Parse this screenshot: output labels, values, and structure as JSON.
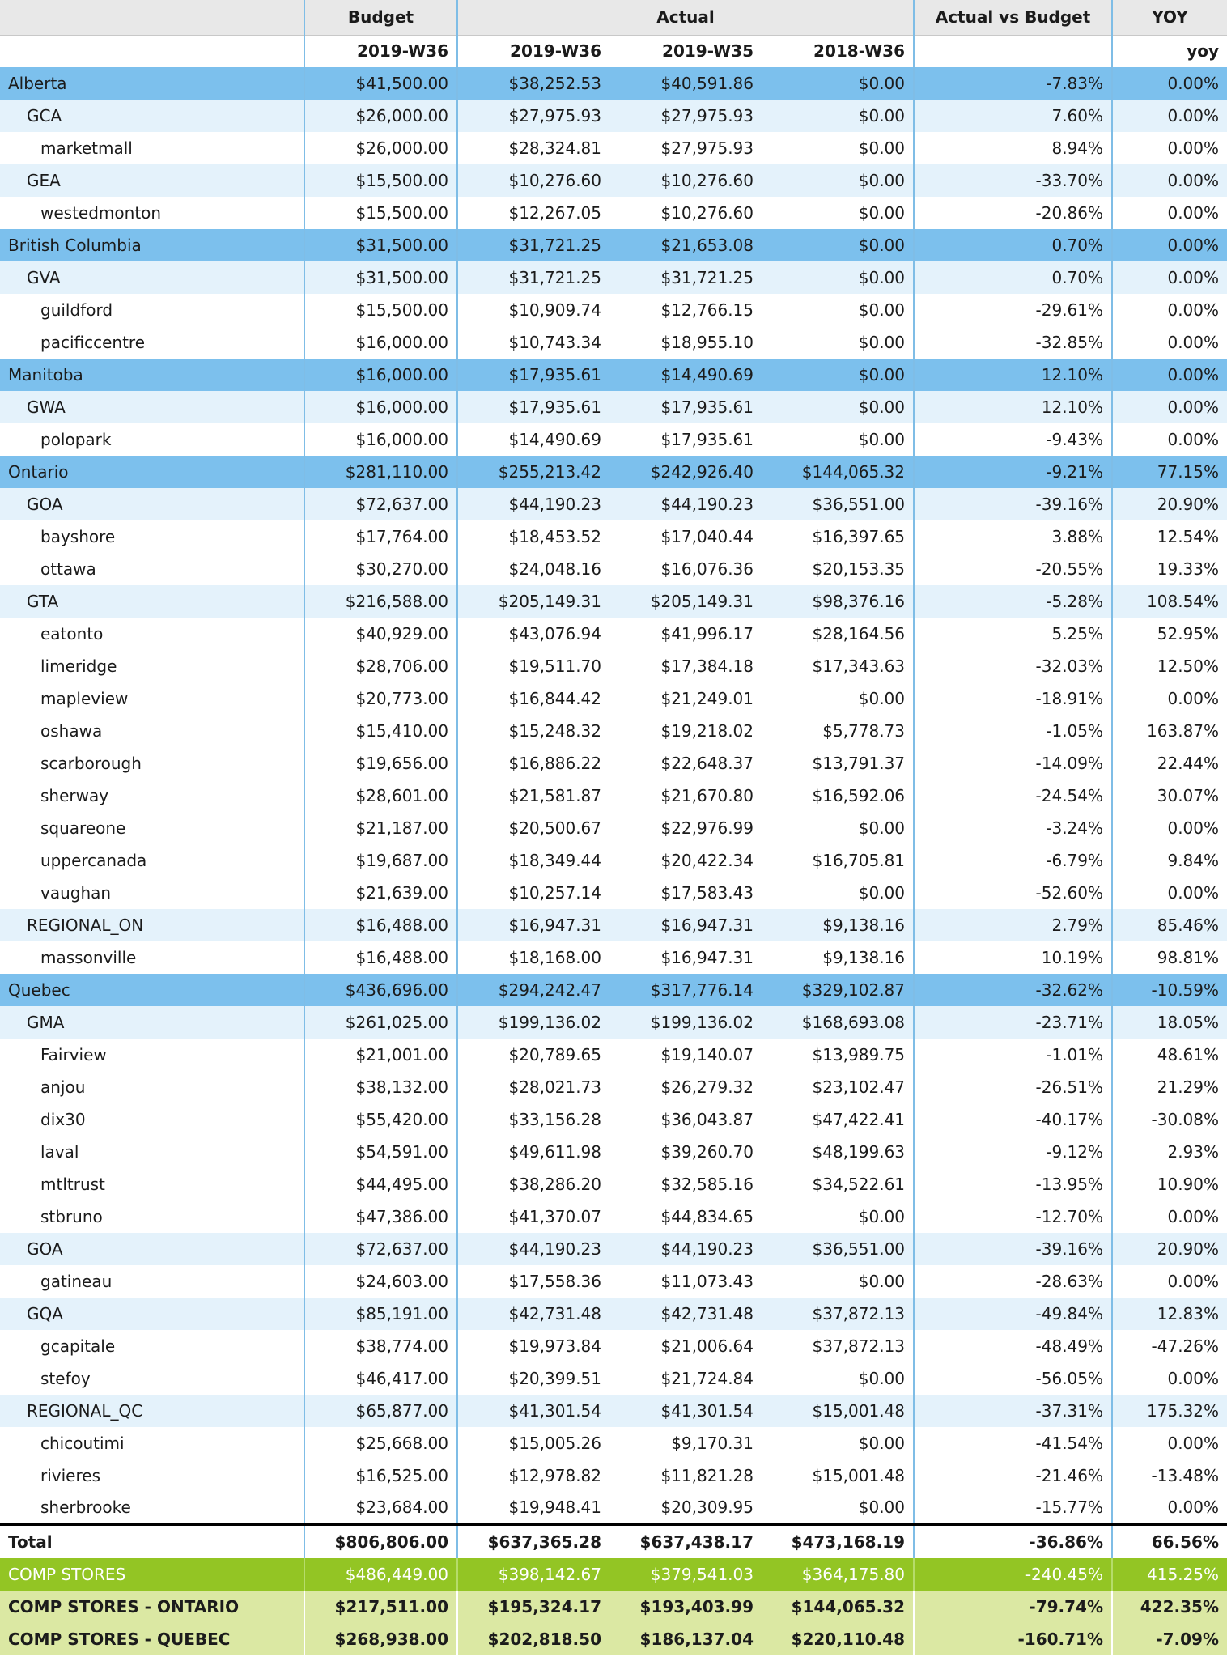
{
  "header": {
    "group_budget": "Budget",
    "group_actual": "Actual",
    "group_avb": "Actual vs Budget",
    "group_yoy": "YOY",
    "budget_week": "2019-W36",
    "actual_w36": "2019-W36",
    "actual_w35": "2019-W35",
    "actual_2018_w36": "2018-W36",
    "avb_sub": "",
    "yoy_sub": "yoy"
  },
  "rows": [
    {
      "level": 0,
      "name": "Alberta",
      "budget": "$41,500.00",
      "a36": "$38,252.53",
      "a35": "$40,591.86",
      "a18": "$0.00",
      "avb": "-7.83%",
      "yoy": "0.00%"
    },
    {
      "level": 1,
      "name": "GCA",
      "budget": "$26,000.00",
      "a36": "$27,975.93",
      "a35": "$27,975.93",
      "a18": "$0.00",
      "avb": "7.60%",
      "yoy": "0.00%"
    },
    {
      "level": 2,
      "name": "marketmall",
      "budget": "$26,000.00",
      "a36": "$28,324.81",
      "a35": "$27,975.93",
      "a18": "$0.00",
      "avb": "8.94%",
      "yoy": "0.00%"
    },
    {
      "level": 1,
      "name": "GEA",
      "budget": "$15,500.00",
      "a36": "$10,276.60",
      "a35": "$10,276.60",
      "a18": "$0.00",
      "avb": "-33.70%",
      "yoy": "0.00%"
    },
    {
      "level": 2,
      "name": "westedmonton",
      "budget": "$15,500.00",
      "a36": "$12,267.05",
      "a35": "$10,276.60",
      "a18": "$0.00",
      "avb": "-20.86%",
      "yoy": "0.00%"
    },
    {
      "level": 0,
      "name": "British Columbia",
      "budget": "$31,500.00",
      "a36": "$31,721.25",
      "a35": "$21,653.08",
      "a18": "$0.00",
      "avb": "0.70%",
      "yoy": "0.00%"
    },
    {
      "level": 1,
      "name": "GVA",
      "budget": "$31,500.00",
      "a36": "$31,721.25",
      "a35": "$31,721.25",
      "a18": "$0.00",
      "avb": "0.70%",
      "yoy": "0.00%"
    },
    {
      "level": 2,
      "name": "guildford",
      "budget": "$15,500.00",
      "a36": "$10,909.74",
      "a35": "$12,766.15",
      "a18": "$0.00",
      "avb": "-29.61%",
      "yoy": "0.00%"
    },
    {
      "level": 2,
      "name": "pacificcentre",
      "budget": "$16,000.00",
      "a36": "$10,743.34",
      "a35": "$18,955.10",
      "a18": "$0.00",
      "avb": "-32.85%",
      "yoy": "0.00%"
    },
    {
      "level": 0,
      "name": "Manitoba",
      "budget": "$16,000.00",
      "a36": "$17,935.61",
      "a35": "$14,490.69",
      "a18": "$0.00",
      "avb": "12.10%",
      "yoy": "0.00%"
    },
    {
      "level": 1,
      "name": "GWA",
      "budget": "$16,000.00",
      "a36": "$17,935.61",
      "a35": "$17,935.61",
      "a18": "$0.00",
      "avb": "12.10%",
      "yoy": "0.00%"
    },
    {
      "level": 2,
      "name": "polopark",
      "budget": "$16,000.00",
      "a36": "$14,490.69",
      "a35": "$17,935.61",
      "a18": "$0.00",
      "avb": "-9.43%",
      "yoy": "0.00%"
    },
    {
      "level": 0,
      "name": "Ontario",
      "budget": "$281,110.00",
      "a36": "$255,213.42",
      "a35": "$242,926.40",
      "a18": "$144,065.32",
      "avb": "-9.21%",
      "yoy": "77.15%"
    },
    {
      "level": 1,
      "name": "GOA",
      "budget": "$72,637.00",
      "a36": "$44,190.23",
      "a35": "$44,190.23",
      "a18": "$36,551.00",
      "avb": "-39.16%",
      "yoy": "20.90%"
    },
    {
      "level": 2,
      "name": "bayshore",
      "budget": "$17,764.00",
      "a36": "$18,453.52",
      "a35": "$17,040.44",
      "a18": "$16,397.65",
      "avb": "3.88%",
      "yoy": "12.54%"
    },
    {
      "level": 2,
      "name": "ottawa",
      "budget": "$30,270.00",
      "a36": "$24,048.16",
      "a35": "$16,076.36",
      "a18": "$20,153.35",
      "avb": "-20.55%",
      "yoy": "19.33%"
    },
    {
      "level": 1,
      "name": "GTA",
      "budget": "$216,588.00",
      "a36": "$205,149.31",
      "a35": "$205,149.31",
      "a18": "$98,376.16",
      "avb": "-5.28%",
      "yoy": "108.54%"
    },
    {
      "level": 2,
      "name": "eatonto",
      "budget": "$40,929.00",
      "a36": "$43,076.94",
      "a35": "$41,996.17",
      "a18": "$28,164.56",
      "avb": "5.25%",
      "yoy": "52.95%"
    },
    {
      "level": 2,
      "name": "limeridge",
      "budget": "$28,706.00",
      "a36": "$19,511.70",
      "a35": "$17,384.18",
      "a18": "$17,343.63",
      "avb": "-32.03%",
      "yoy": "12.50%"
    },
    {
      "level": 2,
      "name": "mapleview",
      "budget": "$20,773.00",
      "a36": "$16,844.42",
      "a35": "$21,249.01",
      "a18": "$0.00",
      "avb": "-18.91%",
      "yoy": "0.00%"
    },
    {
      "level": 2,
      "name": "oshawa",
      "budget": "$15,410.00",
      "a36": "$15,248.32",
      "a35": "$19,218.02",
      "a18": "$5,778.73",
      "avb": "-1.05%",
      "yoy": "163.87%"
    },
    {
      "level": 2,
      "name": "scarborough",
      "budget": "$19,656.00",
      "a36": "$16,886.22",
      "a35": "$22,648.37",
      "a18": "$13,791.37",
      "avb": "-14.09%",
      "yoy": "22.44%"
    },
    {
      "level": 2,
      "name": "sherway",
      "budget": "$28,601.00",
      "a36": "$21,581.87",
      "a35": "$21,670.80",
      "a18": "$16,592.06",
      "avb": "-24.54%",
      "yoy": "30.07%"
    },
    {
      "level": 2,
      "name": "squareone",
      "budget": "$21,187.00",
      "a36": "$20,500.67",
      "a35": "$22,976.99",
      "a18": "$0.00",
      "avb": "-3.24%",
      "yoy": "0.00%"
    },
    {
      "level": 2,
      "name": "uppercanada",
      "budget": "$19,687.00",
      "a36": "$18,349.44",
      "a35": "$20,422.34",
      "a18": "$16,705.81",
      "avb": "-6.79%",
      "yoy": "9.84%"
    },
    {
      "level": 2,
      "name": "vaughan",
      "budget": "$21,639.00",
      "a36": "$10,257.14",
      "a35": "$17,583.43",
      "a18": "$0.00",
      "avb": "-52.60%",
      "yoy": "0.00%"
    },
    {
      "level": 1,
      "name": "REGIONAL_ON",
      "budget": "$16,488.00",
      "a36": "$16,947.31",
      "a35": "$16,947.31",
      "a18": "$9,138.16",
      "avb": "2.79%",
      "yoy": "85.46%"
    },
    {
      "level": 2,
      "name": "massonville",
      "budget": "$16,488.00",
      "a36": "$18,168.00",
      "a35": "$16,947.31",
      "a18": "$9,138.16",
      "avb": "10.19%",
      "yoy": "98.81%"
    },
    {
      "level": 0,
      "name": "Quebec",
      "budget": "$436,696.00",
      "a36": "$294,242.47",
      "a35": "$317,776.14",
      "a18": "$329,102.87",
      "avb": "-32.62%",
      "yoy": "-10.59%"
    },
    {
      "level": 1,
      "name": "GMA",
      "budget": "$261,025.00",
      "a36": "$199,136.02",
      "a35": "$199,136.02",
      "a18": "$168,693.08",
      "avb": "-23.71%",
      "yoy": "18.05%"
    },
    {
      "level": 2,
      "name": "Fairview",
      "budget": "$21,001.00",
      "a36": "$20,789.65",
      "a35": "$19,140.07",
      "a18": "$13,989.75",
      "avb": "-1.01%",
      "yoy": "48.61%"
    },
    {
      "level": 2,
      "name": "anjou",
      "budget": "$38,132.00",
      "a36": "$28,021.73",
      "a35": "$26,279.32",
      "a18": "$23,102.47",
      "avb": "-26.51%",
      "yoy": "21.29%"
    },
    {
      "level": 2,
      "name": "dix30",
      "budget": "$55,420.00",
      "a36": "$33,156.28",
      "a35": "$36,043.87",
      "a18": "$47,422.41",
      "avb": "-40.17%",
      "yoy": "-30.08%"
    },
    {
      "level": 2,
      "name": "laval",
      "budget": "$54,591.00",
      "a36": "$49,611.98",
      "a35": "$39,260.70",
      "a18": "$48,199.63",
      "avb": "-9.12%",
      "yoy": "2.93%"
    },
    {
      "level": 2,
      "name": "mtltrust",
      "budget": "$44,495.00",
      "a36": "$38,286.20",
      "a35": "$32,585.16",
      "a18": "$34,522.61",
      "avb": "-13.95%",
      "yoy": "10.90%"
    },
    {
      "level": 2,
      "name": "stbruno",
      "budget": "$47,386.00",
      "a36": "$41,370.07",
      "a35": "$44,834.65",
      "a18": "$0.00",
      "avb": "-12.70%",
      "yoy": "0.00%"
    },
    {
      "level": 1,
      "name": "GOA",
      "budget": "$72,637.00",
      "a36": "$44,190.23",
      "a35": "$44,190.23",
      "a18": "$36,551.00",
      "avb": "-39.16%",
      "yoy": "20.90%"
    },
    {
      "level": 2,
      "name": "gatineau",
      "budget": "$24,603.00",
      "a36": "$17,558.36",
      "a35": "$11,073.43",
      "a18": "$0.00",
      "avb": "-28.63%",
      "yoy": "0.00%"
    },
    {
      "level": 1,
      "name": "GQA",
      "budget": "$85,191.00",
      "a36": "$42,731.48",
      "a35": "$42,731.48",
      "a18": "$37,872.13",
      "avb": "-49.84%",
      "yoy": "12.83%"
    },
    {
      "level": 2,
      "name": "gcapitale",
      "budget": "$38,774.00",
      "a36": "$19,973.84",
      "a35": "$21,006.64",
      "a18": "$37,872.13",
      "avb": "-48.49%",
      "yoy": "-47.26%"
    },
    {
      "level": 2,
      "name": "stefoy",
      "budget": "$46,417.00",
      "a36": "$20,399.51",
      "a35": "$21,724.84",
      "a18": "$0.00",
      "avb": "-56.05%",
      "yoy": "0.00%"
    },
    {
      "level": 1,
      "name": "REGIONAL_QC",
      "budget": "$65,877.00",
      "a36": "$41,301.54",
      "a35": "$41,301.54",
      "a18": "$15,001.48",
      "avb": "-37.31%",
      "yoy": "175.32%"
    },
    {
      "level": 2,
      "name": "chicoutimi",
      "budget": "$25,668.00",
      "a36": "$15,005.26",
      "a35": "$9,170.31",
      "a18": "$0.00",
      "avb": "-41.54%",
      "yoy": "0.00%"
    },
    {
      "level": 2,
      "name": "rivieres",
      "budget": "$16,525.00",
      "a36": "$12,978.82",
      "a35": "$11,821.28",
      "a18": "$15,001.48",
      "avb": "-21.46%",
      "yoy": "-13.48%"
    },
    {
      "level": 2,
      "name": "sherbrooke",
      "budget": "$23,684.00",
      "a36": "$19,948.41",
      "a35": "$20,309.95",
      "a18": "$0.00",
      "avb": "-15.77%",
      "yoy": "0.00%"
    }
  ],
  "summary": [
    {
      "kind": "total",
      "name": "Total",
      "budget": "$806,806.00",
      "a36": "$637,365.28",
      "a35": "$637,438.17",
      "a18": "$473,168.19",
      "avb": "-36.86%",
      "yoy": "66.56%"
    },
    {
      "kind": "comp",
      "name": "COMP STORES",
      "budget": "$486,449.00",
      "a36": "$398,142.67",
      "a35": "$379,541.03",
      "a18": "$364,175.80",
      "avb": "-240.45%",
      "yoy": "415.25%"
    },
    {
      "kind": "compsub",
      "name": "COMP STORES - ONTARIO",
      "budget": "$217,511.00",
      "a36": "$195,324.17",
      "a35": "$193,403.99",
      "a18": "$144,065.32",
      "avb": "-79.74%",
      "yoy": "422.35%"
    },
    {
      "kind": "compsub",
      "name": "COMP STORES - QUEBEC",
      "budget": "$268,938.00",
      "a36": "$202,818.50",
      "a35": "$186,137.04",
      "a18": "$220,110.48",
      "avb": "-160.71%",
      "yoy": "-7.09%"
    }
  ],
  "colors": {
    "level0_bg": "#7cc0ed",
    "level1_bg": "#e4f2fb",
    "comp_bg": "#93c524",
    "compsub_bg": "#dbe8a3",
    "header_bg": "#e8e8e8",
    "divider": "#7fbde6"
  }
}
